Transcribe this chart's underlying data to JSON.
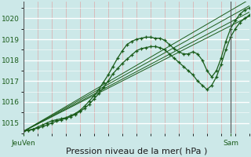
{
  "background_color": "#cce8e8",
  "plot_bg_color": "#cce8e8",
  "grid_color_major": "#ffffff",
  "grid_color_minor": "#ddeeee",
  "vgrid_color": "#ee9999",
  "line_color": "#1a5c1a",
  "marker_color": "#1a5c1a",
  "xlabel": "Pression niveau de la mer( hPa )",
  "xlabel_fontsize": 8,
  "ylim": [
    1014.5,
    1020.8
  ],
  "xlim": [
    0,
    48
  ],
  "yticks": [
    1015,
    1016,
    1017,
    1018,
    1019,
    1020
  ],
  "xtick_positions": [
    0,
    44
  ],
  "xtick_labels": [
    "JeuVen",
    "Sam"
  ],
  "series": [
    {
      "x": [
        0,
        1,
        2,
        3,
        4,
        5,
        6,
        7,
        8,
        9,
        10,
        11,
        12,
        13,
        14,
        15,
        16,
        17,
        18,
        19,
        20,
        21,
        22,
        23,
        24,
        25,
        26,
        27,
        28,
        29,
        30,
        31,
        32,
        33,
        34,
        35,
        36,
        37,
        38,
        39,
        40,
        41,
        42,
        43,
        44,
        45,
        46,
        47,
        48
      ],
      "y": [
        1014.6,
        1014.65,
        1014.7,
        1014.8,
        1014.9,
        1015.0,
        1015.1,
        1015.15,
        1015.2,
        1015.25,
        1015.35,
        1015.45,
        1015.6,
        1015.8,
        1016.05,
        1016.3,
        1016.6,
        1016.95,
        1017.3,
        1017.7,
        1018.1,
        1018.45,
        1018.75,
        1018.9,
        1019.0,
        1019.05,
        1019.1,
        1019.1,
        1019.05,
        1019.05,
        1018.95,
        1018.75,
        1018.55,
        1018.4,
        1018.3,
        1018.3,
        1018.4,
        1018.3,
        1018.0,
        1017.5,
        1017.2,
        1017.5,
        1018.1,
        1018.9,
        1019.5,
        1019.9,
        1020.2,
        1020.4,
        1020.5
      ],
      "with_markers": true
    },
    {
      "x": [
        0,
        48
      ],
      "y": [
        1014.6,
        1020.9
      ],
      "with_markers": false
    },
    {
      "x": [
        0,
        48
      ],
      "y": [
        1014.6,
        1020.6
      ],
      "with_markers": false
    },
    {
      "x": [
        0,
        48
      ],
      "y": [
        1014.6,
        1020.3
      ],
      "with_markers": false
    },
    {
      "x": [
        0,
        48
      ],
      "y": [
        1014.6,
        1020.1
      ],
      "with_markers": false
    },
    {
      "x": [
        0,
        1,
        2,
        3,
        4,
        5,
        6,
        7,
        8,
        9,
        10,
        11,
        12,
        13,
        14,
        15,
        16,
        17,
        18,
        19,
        20,
        21,
        22,
        23,
        24,
        25,
        26,
        27,
        28,
        29,
        30,
        31,
        32,
        33,
        34,
        35,
        36,
        37,
        38,
        39,
        40,
        41,
        42,
        43,
        44,
        45,
        46,
        47,
        48
      ],
      "y": [
        1014.6,
        1014.65,
        1014.7,
        1014.75,
        1014.82,
        1014.9,
        1015.0,
        1015.08,
        1015.15,
        1015.22,
        1015.3,
        1015.4,
        1015.55,
        1015.7,
        1015.9,
        1016.15,
        1016.4,
        1016.7,
        1017.0,
        1017.35,
        1017.6,
        1017.85,
        1018.05,
        1018.25,
        1018.45,
        1018.55,
        1018.6,
        1018.65,
        1018.65,
        1018.6,
        1018.5,
        1018.3,
        1018.1,
        1017.9,
        1017.7,
        1017.5,
        1017.3,
        1017.0,
        1016.8,
        1016.6,
        1016.8,
        1017.2,
        1017.8,
        1018.5,
        1019.1,
        1019.5,
        1019.8,
        1020.0,
        1020.15
      ],
      "with_markers": true
    }
  ],
  "vline_positions": [
    0,
    44
  ],
  "vline_color": "#555555",
  "n_xgrid": 16,
  "n_ygrid": 12
}
